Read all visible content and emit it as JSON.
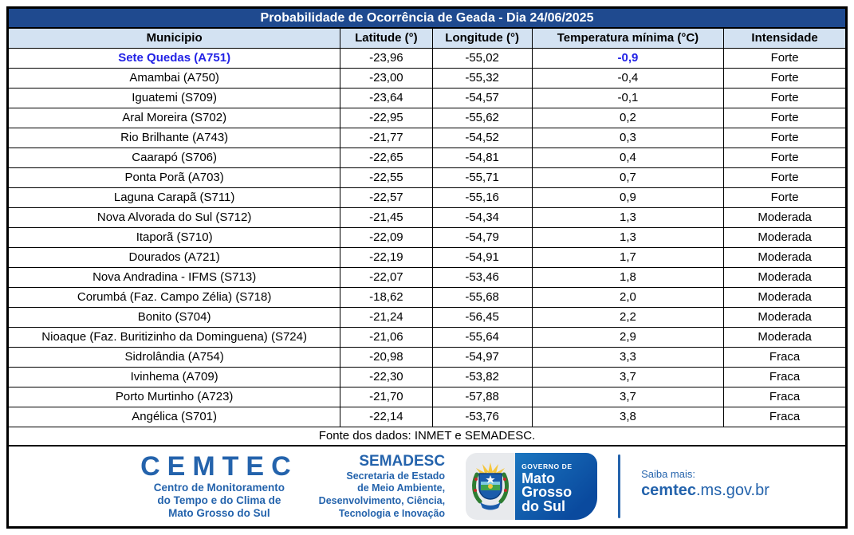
{
  "title": "Probabilidade de Ocorrência de Geada - Dia 24/06/2025",
  "table": {
    "columns": [
      "Municipio",
      "Latitude (°)",
      "Longitude (°)",
      "Temperatura mínima (°C)",
      "Intensidade"
    ],
    "rows": [
      {
        "municipio": "Sete Quedas (A751)",
        "latitude": "-23,96",
        "longitude": "-55,02",
        "temp_min": "-0,9",
        "intensidade": "Forte",
        "highlight": true
      },
      {
        "municipio": "Amambai (A750)",
        "latitude": "-23,00",
        "longitude": "-55,32",
        "temp_min": "-0,4",
        "intensidade": "Forte",
        "highlight": false
      },
      {
        "municipio": "Iguatemi (S709)",
        "latitude": "-23,64",
        "longitude": "-54,57",
        "temp_min": "-0,1",
        "intensidade": "Forte",
        "highlight": false
      },
      {
        "municipio": "Aral Moreira (S702)",
        "latitude": "-22,95",
        "longitude": "-55,62",
        "temp_min": "0,2",
        "intensidade": "Forte",
        "highlight": false
      },
      {
        "municipio": "Rio Brilhante (A743)",
        "latitude": "-21,77",
        "longitude": "-54,52",
        "temp_min": "0,3",
        "intensidade": "Forte",
        "highlight": false
      },
      {
        "municipio": "Caarapó (S706)",
        "latitude": "-22,65",
        "longitude": "-54,81",
        "temp_min": "0,4",
        "intensidade": "Forte",
        "highlight": false
      },
      {
        "municipio": "Ponta Porã (A703)",
        "latitude": "-22,55",
        "longitude": "-55,71",
        "temp_min": "0,7",
        "intensidade": "Forte",
        "highlight": false
      },
      {
        "municipio": "Laguna Carapã (S711)",
        "latitude": "-22,57",
        "longitude": "-55,16",
        "temp_min": "0,9",
        "intensidade": "Forte",
        "highlight": false
      },
      {
        "municipio": "Nova Alvorada do Sul (S712)",
        "latitude": "-21,45",
        "longitude": "-54,34",
        "temp_min": "1,3",
        "intensidade": "Moderada",
        "highlight": false
      },
      {
        "municipio": "Itaporã (S710)",
        "latitude": "-22,09",
        "longitude": "-54,79",
        "temp_min": "1,3",
        "intensidade": "Moderada",
        "highlight": false
      },
      {
        "municipio": "Dourados (A721)",
        "latitude": "-22,19",
        "longitude": "-54,91",
        "temp_min": "1,7",
        "intensidade": "Moderada",
        "highlight": false
      },
      {
        "municipio": "Nova Andradina - IFMS (S713)",
        "latitude": "-22,07",
        "longitude": "-53,46",
        "temp_min": "1,8",
        "intensidade": "Moderada",
        "highlight": false
      },
      {
        "municipio": "Corumbá (Faz. Campo Zélia) (S718)",
        "latitude": "-18,62",
        "longitude": "-55,68",
        "temp_min": "2,0",
        "intensidade": "Moderada",
        "highlight": false
      },
      {
        "municipio": "Bonito (S704)",
        "latitude": "-21,24",
        "longitude": "-56,45",
        "temp_min": "2,2",
        "intensidade": "Moderada",
        "highlight": false
      },
      {
        "municipio": "Nioaque (Faz. Buritizinho da Dominguena) (S724)",
        "latitude": "-21,06",
        "longitude": "-55,64",
        "temp_min": "2,9",
        "intensidade": "Moderada",
        "highlight": false
      },
      {
        "municipio": "Sidrolândia (A754)",
        "latitude": "-20,98",
        "longitude": "-54,97",
        "temp_min": "3,3",
        "intensidade": "Fraca",
        "highlight": false
      },
      {
        "municipio": "Ivinhema (A709)",
        "latitude": "-22,30",
        "longitude": "-53,82",
        "temp_min": "3,7",
        "intensidade": "Fraca",
        "highlight": false
      },
      {
        "municipio": "Porto Murtinho (A723)",
        "latitude": "-21,70",
        "longitude": "-57,88",
        "temp_min": "3,7",
        "intensidade": "Fraca",
        "highlight": false
      },
      {
        "municipio": "Angélica (S701)",
        "latitude": "-22,14",
        "longitude": "-53,76",
        "temp_min": "3,8",
        "intensidade": "Fraca",
        "highlight": false
      }
    ],
    "source_note": "Fonte dos dados: INMET e SEMADESC."
  },
  "footer": {
    "cemtec": {
      "name": "CEMTEC",
      "subtitle_lines": [
        "Centro de Monitoramento",
        "do Tempo e do Clima de",
        "Mato Grosso do Sul"
      ]
    },
    "semadesc": {
      "name": "SEMADESC",
      "subtitle_lines": [
        "Secretaria de Estado",
        "de Meio Ambiente,",
        "Desenvolvimento, Ciência,",
        "Tecnologia e Inovação"
      ]
    },
    "governo": {
      "label": "GOVERNO DE",
      "lines": [
        "Mato",
        "Grosso",
        "do Sul"
      ]
    },
    "saiba_mais": {
      "label": "Saiba mais:",
      "domain_bold": "cemtec",
      "domain_rest": ".ms.gov.br"
    }
  },
  "colors": {
    "title_bar": "#1F4A8F",
    "header_bg": "#D3E2F2",
    "highlight_blue": "#2323E6",
    "footer_blue": "#2463AC"
  }
}
